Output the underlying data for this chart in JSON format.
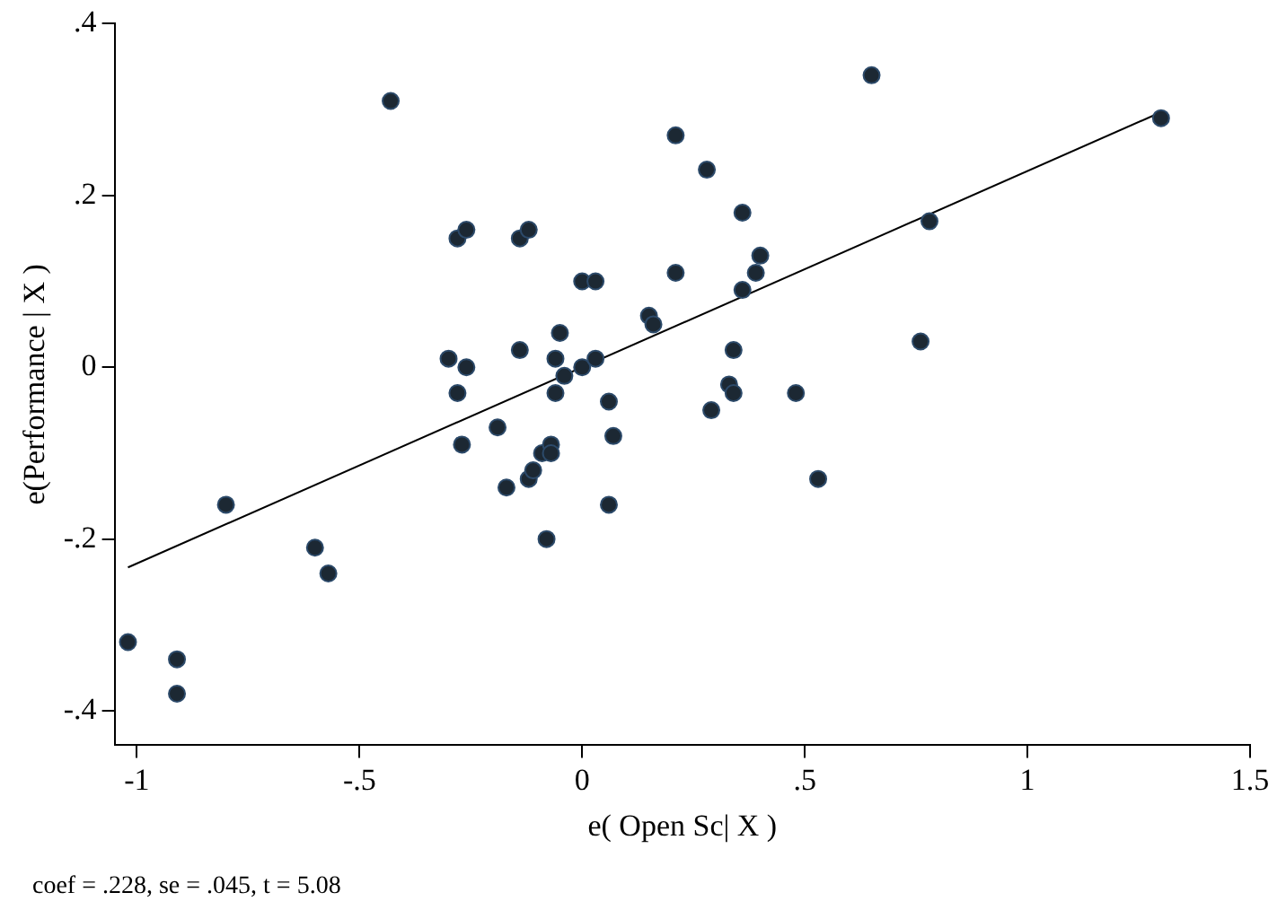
{
  "chart_data": {
    "type": "scatter",
    "xlabel": "e( Open Sc| X )",
    "ylabel": "e(Performance | X )",
    "annotations": [
      "coef = .228, se = .045, t = 5.08"
    ],
    "xlim": [
      -1.05,
      1.5
    ],
    "ylim": [
      -0.44,
      0.4
    ],
    "xticks": [
      {
        "value": -1,
        "label": "-1"
      },
      {
        "value": -0.5,
        "label": "-.5"
      },
      0,
      {
        "value": 0.5,
        "label": ".5"
      },
      1,
      1.5
    ],
    "yticks": [
      {
        "value": -0.4,
        "label": "-.4"
      },
      {
        "value": -0.2,
        "label": "-.2"
      },
      0,
      {
        "value": 0.2,
        "label": ".2"
      },
      {
        "value": 0.4,
        "label": ".4"
      }
    ],
    "grid": false,
    "legend": false,
    "marker": "circle",
    "series": [
      {
        "color": "#1c2833",
        "x": [
          -1.02,
          -0.91,
          -0.91,
          -0.8,
          -0.6,
          -0.57,
          -0.43,
          -0.3,
          -0.28,
          -0.27,
          -0.28,
          -0.26,
          -0.26,
          -0.14,
          -0.12,
          -0.19,
          -0.14,
          -0.17,
          -0.12,
          -0.11,
          -0.09,
          -0.07,
          -0.07,
          -0.08,
          -0.06,
          -0.04,
          -0.06,
          -0.05,
          0,
          0.03,
          0,
          0.03,
          0.06,
          0.07,
          0.06,
          0.15,
          0.16,
          0.21,
          0.36,
          0.4,
          0.39,
          0.36,
          0.34,
          0.33,
          0.34,
          0.29,
          0.48,
          0.53,
          0.21,
          0.28,
          0.65,
          0.76,
          0.78,
          1.3
        ],
        "values": [
          -0.32,
          -0.34,
          -0.38,
          -0.16,
          -0.21,
          -0.24,
          0.31,
          0.01,
          -0.03,
          -0.09,
          0.15,
          0.16,
          0,
          0.15,
          0.16,
          -0.07,
          0.02,
          -0.14,
          -0.13,
          -0.12,
          -0.1,
          -0.09,
          -0.1,
          -0.2,
          0.01,
          -0.01,
          -0.03,
          0.04,
          0.1,
          0.1,
          0,
          0.01,
          -0.04,
          -0.08,
          -0.16,
          0.06,
          0.05,
          0.11,
          0.18,
          0.13,
          0.11,
          0.09,
          0.02,
          -0.02,
          -0.03,
          -0.05,
          -0.03,
          -0.13,
          0.27,
          0.23,
          0.34,
          0.03,
          0.17,
          0.29
        ]
      },
      {
        "type": "line",
        "color": "#000000",
        "x": [
          -1.02,
          1.3
        ],
        "values": [
          -0.233,
          0.297
        ],
        "marker": "none"
      }
    ]
  }
}
